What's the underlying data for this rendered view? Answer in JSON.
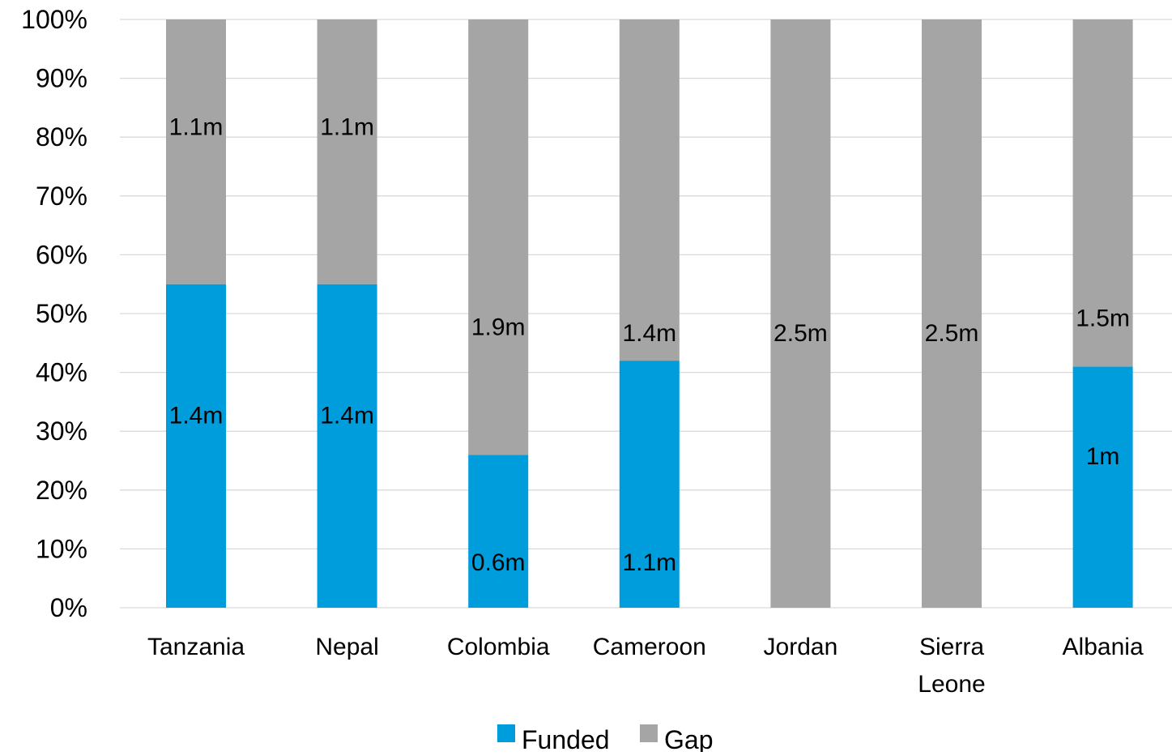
{
  "chart_data": {
    "type": "bar",
    "stacked": true,
    "percent_stacked": true,
    "categories": [
      "Tanzania",
      "Nepal",
      "Colombia",
      "Cameroon",
      "Jordan",
      "Sierra Leone",
      "Albania"
    ],
    "category_lines": [
      [
        "Tanzania"
      ],
      [
        "Nepal"
      ],
      [
        "Colombia"
      ],
      [
        "Cameroon"
      ],
      [
        "Jordan"
      ],
      [
        "Sierra",
        "Leone"
      ],
      [
        "Albania"
      ]
    ],
    "series": [
      {
        "name": "Funded",
        "color": "#009ddc",
        "values": [
          55,
          55,
          26,
          42,
          0,
          0,
          41
        ],
        "labels": [
          "1.4m",
          "1.4m",
          "0.6m",
          "1.1m",
          "",
          "",
          "1m"
        ]
      },
      {
        "name": "Gap",
        "color": "#a5a5a5",
        "values": [
          45,
          45,
          74,
          58,
          100,
          100,
          59
        ],
        "labels": [
          "1.1m",
          "1.1m",
          "1.9m",
          "1.4m",
          "2.5m",
          "2.5m",
          "1.5m"
        ]
      }
    ],
    "y_ticks": [
      "0%",
      "10%",
      "20%",
      "30%",
      "40%",
      "50%",
      "60%",
      "70%",
      "80%",
      "90%",
      "100%"
    ],
    "ylim": [
      0,
      100
    ],
    "grid": true,
    "gridline_color": "#d9d9d9",
    "legend_position": "bottom",
    "title": "",
    "xlabel": "",
    "ylabel": ""
  }
}
